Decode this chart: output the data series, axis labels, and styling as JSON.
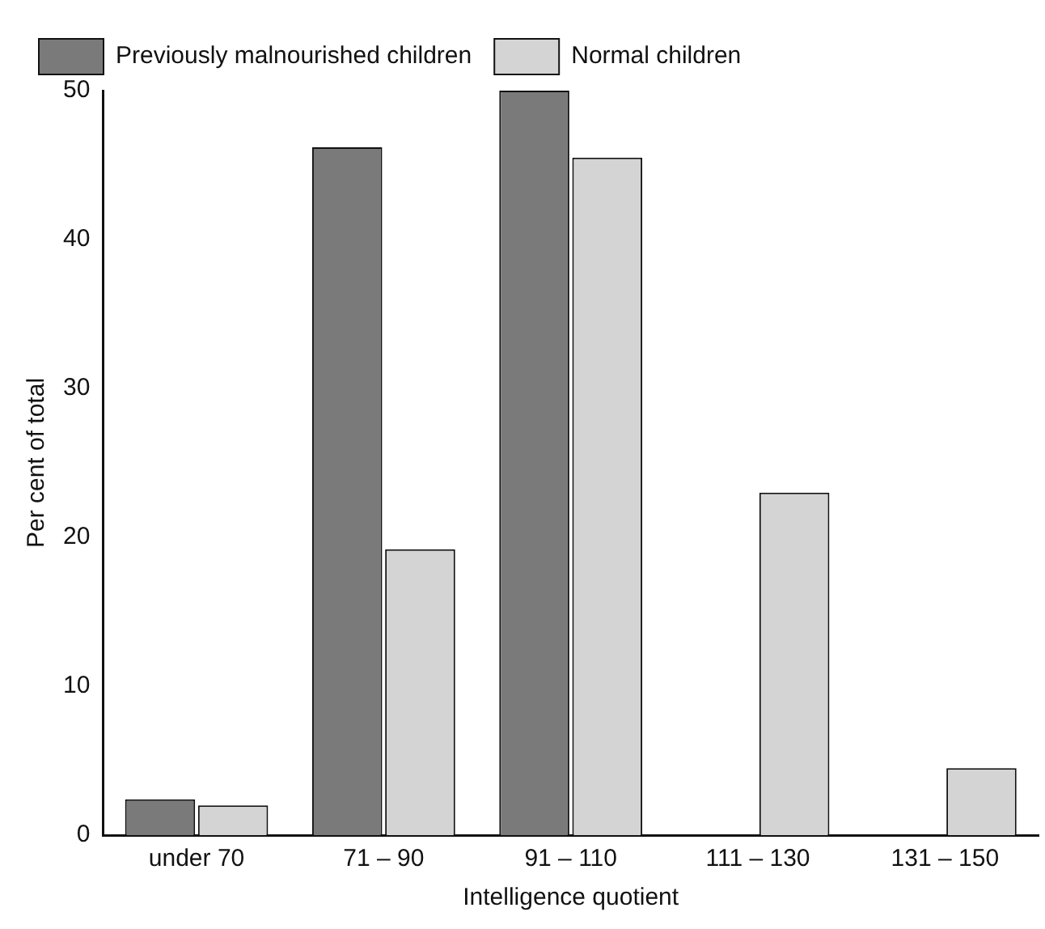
{
  "chart_data": {
    "type": "bar",
    "xlabel": "Intelligence quotient",
    "ylabel": "Per cent of total",
    "categories": [
      "under 70",
      "71 – 90",
      "91 – 110",
      "111 – 130",
      "131 – 150"
    ],
    "series": [
      {
        "name": "Previously malnourished children",
        "color": "#7a7a7a",
        "values": [
          2.4,
          46.2,
          50,
          0,
          0
        ]
      },
      {
        "name": "Normal children",
        "color": "#d4d4d4",
        "values": [
          2.0,
          19.2,
          45.5,
          23.0,
          4.5
        ]
      }
    ],
    "ylim": [
      0,
      50
    ],
    "yticks": [
      0,
      10,
      20,
      30,
      40,
      50
    ],
    "grid": false,
    "legend": "top"
  }
}
